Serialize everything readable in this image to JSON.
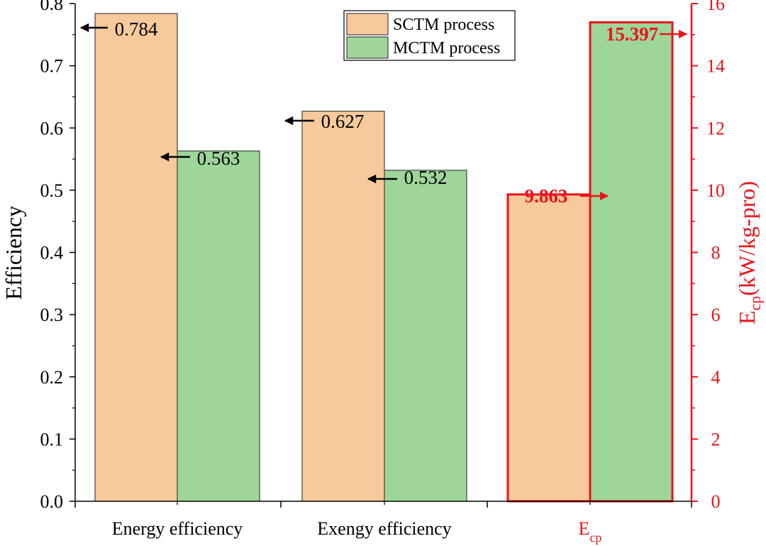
{
  "chart_data": {
    "type": "bar",
    "categories": [
      "Energy efficiency",
      "Exengy efficiency",
      "E"
    ],
    "category_subscripts": [
      "",
      "",
      "cp"
    ],
    "series": [
      {
        "name": "SCTM process",
        "color": "#F8C99B",
        "values": [
          0.784,
          0.627,
          9.863
        ]
      },
      {
        "name": "MCTM process",
        "color": "#9ED69A",
        "values": [
          0.563,
          0.532,
          15.397
        ]
      }
    ],
    "value_labels": {
      "SCTM process": [
        "0.784",
        "0.627",
        "9.863"
      ],
      "MCTM process": [
        "0.563",
        "0.532",
        "15.397"
      ]
    },
    "left_axis": {
      "label": "Efficiency",
      "ylim": [
        0.0,
        0.8
      ],
      "ticks": [
        "0.0",
        "0.1",
        "0.2",
        "0.3",
        "0.4",
        "0.5",
        "0.6",
        "0.7",
        "0.8"
      ]
    },
    "right_axis": {
      "label_main": "E",
      "label_sub": "cp",
      "label_tail": "(kW/kg-pro)",
      "ylim": [
        0,
        16
      ],
      "ticks": [
        "0",
        "2",
        "4",
        "6",
        "8",
        "10",
        "12",
        "14",
        "16"
      ],
      "color": "#E8141B"
    },
    "right_axis_category_index": 2,
    "legend": "top-center",
    "grid": false
  }
}
